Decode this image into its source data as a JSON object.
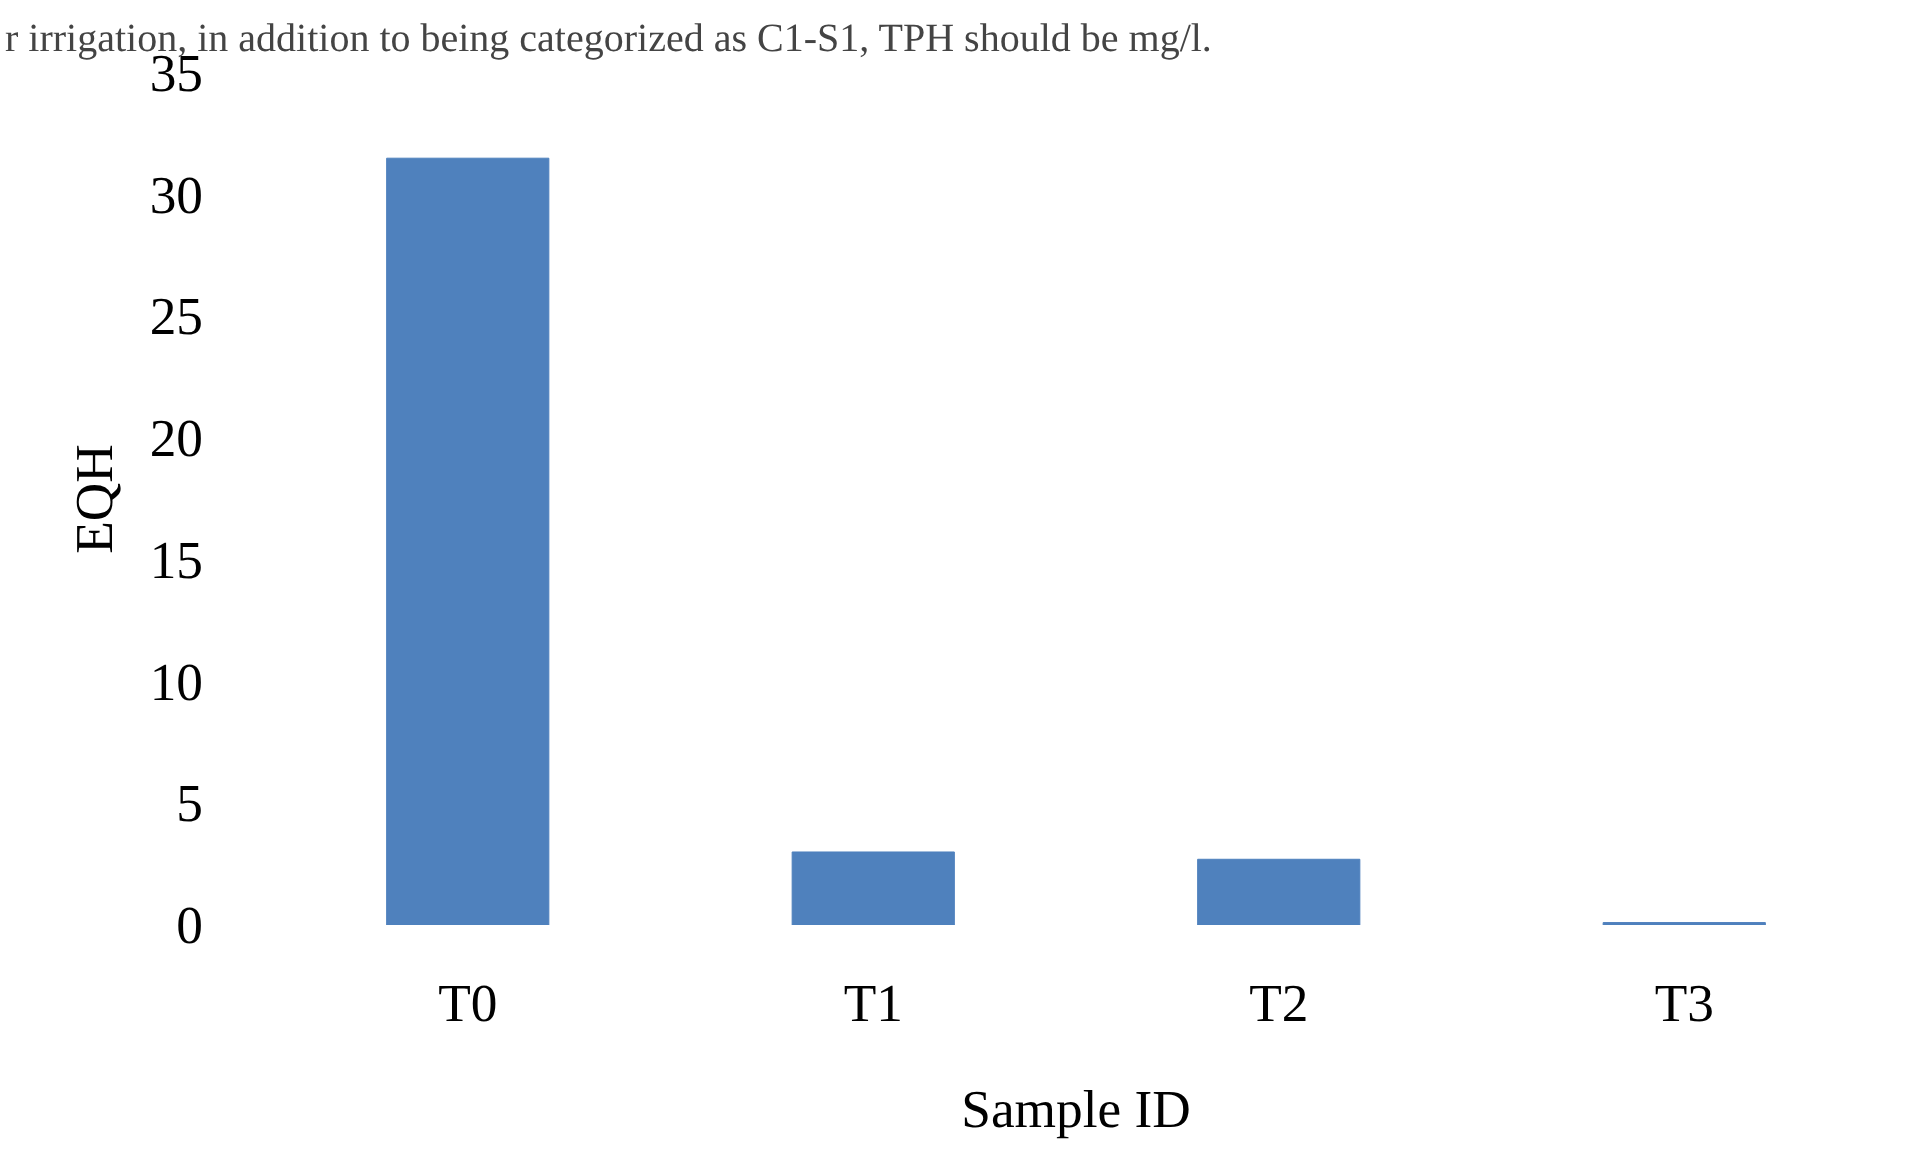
{
  "chart_data": {
    "type": "bar",
    "xlabel": "Sample ID",
    "ylabel": "EQH",
    "categories": [
      "T0",
      "T1",
      "T2",
      "T3"
    ],
    "values": [
      31.5,
      3.0,
      2.7,
      0.1
    ],
    "color": "#4f81bd",
    "ylim": [
      0,
      35
    ],
    "yticks": [
      0,
      5,
      10,
      15,
      20,
      25,
      30,
      35
    ],
    "grid": false,
    "annotations": [
      "r irrigation, in addition to being categorized as C1-S1, TPH should be  mg/l."
    ]
  }
}
